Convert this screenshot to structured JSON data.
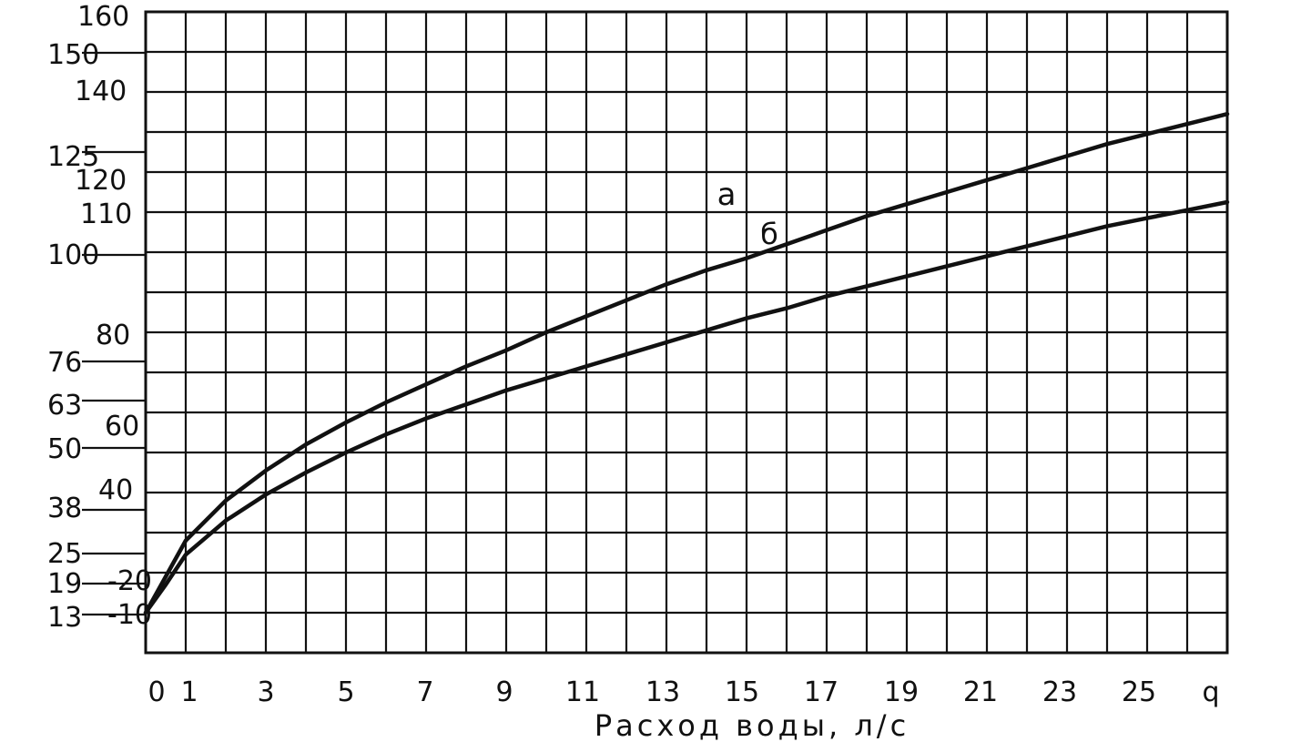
{
  "chart_data": {
    "type": "line",
    "xlabel": "Расход воды, л/с",
    "x_end_label": "q",
    "x_ticks": [
      "0",
      "1",
      "3",
      "5",
      "7",
      "9",
      "11",
      "13",
      "15",
      "17",
      "19",
      "21",
      "23",
      "25"
    ],
    "outer_y_labels": [
      "150",
      "125",
      "100",
      "76",
      "63",
      "50",
      "38",
      "25",
      "19",
      "13"
    ],
    "inner_y_labels": [
      "160",
      "140",
      "120",
      "110",
      "80",
      "60",
      "40",
      "-20",
      "-10"
    ],
    "xlim": [
      0,
      27
    ],
    "ylim": [
      0,
      160
    ],
    "grid": true,
    "series": [
      {
        "name": "а",
        "x": [
          0,
          0.5,
          1,
          2,
          3,
          4,
          5,
          6,
          7,
          8,
          9,
          10,
          11,
          12,
          13,
          14,
          15,
          16,
          17,
          18,
          19,
          20,
          21,
          22,
          23,
          24,
          25,
          26,
          27
        ],
        "values": [
          10,
          19,
          28,
          38,
          45.5,
          52,
          57.5,
          62.5,
          67,
          71.5,
          75.5,
          80,
          84,
          88,
          92,
          95.5,
          98.5,
          102,
          105.5,
          109,
          112,
          115,
          118,
          121,
          124,
          127,
          129.5,
          132,
          134.5
        ]
      },
      {
        "name": "б",
        "x": [
          0,
          0.5,
          1,
          2,
          3,
          4,
          5,
          6,
          7,
          8,
          9,
          10,
          11,
          12,
          13,
          14,
          15,
          16,
          17,
          18,
          19,
          20,
          21,
          22,
          23,
          24,
          25,
          26,
          27
        ],
        "values": [
          10,
          17,
          24.5,
          33,
          39.5,
          45,
          50,
          54.5,
          58.5,
          62,
          65.5,
          68.5,
          71.5,
          74.5,
          77.5,
          80.5,
          83.5,
          86,
          89,
          91.5,
          94,
          96.5,
          99,
          101.5,
          104,
          106.5,
          108.5,
          110.5,
          112.5
        ]
      }
    ]
  }
}
